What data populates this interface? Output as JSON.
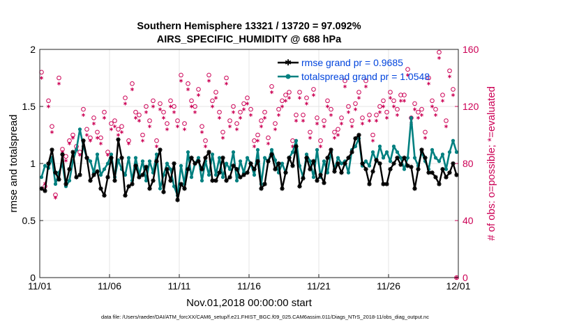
{
  "chart_data": {
    "type": "line",
    "title_line1": "Southern Hemisphere 13321 / 13720 = 97.092%",
    "title_line2": "AIRS_SPECIFIC_HUMIDITY @ 688 hPa",
    "xlabel": "Nov.01,2018 00:00:00 start",
    "ylabel_left": "rmse and totalspread",
    "ylabel_right": "# of obs: o=possible; *=evaluated",
    "footer": "data file: /Users/raeder/DAI/ATM_forcXX/CAM6_setup/f.e21.FHIST_BGC.f09_025.CAM6assim.011/Diags_NTrS_2018-11/obs_diag_output.nc",
    "xlim": [
      0,
      30
    ],
    "ylim_left": [
      0,
      2
    ],
    "ylim_right": [
      0,
      160
    ],
    "xticks": [
      0,
      5,
      10,
      15,
      20,
      25,
      30
    ],
    "xtick_labels": [
      "11/01",
      "11/06",
      "11/11",
      "11/16",
      "11/21",
      "11/26",
      "12/01"
    ],
    "yticks_left": [
      0,
      0.5,
      1,
      1.5,
      2
    ],
    "ytick_labels_left": [
      "0",
      "0.5",
      "1",
      "1.5",
      "2"
    ],
    "yticks_right": [
      0,
      40,
      80,
      120,
      160
    ],
    "ytick_labels_right": [
      "0",
      "40",
      "80",
      "120",
      "160"
    ],
    "grid": true,
    "legend_position": "top-right",
    "colors": {
      "rmse": "#000000",
      "spread": "#008080",
      "obs": "#cc0055",
      "legend_text": "#0044dd"
    },
    "x": [
      0.125,
      0.375,
      0.625,
      0.875,
      1.125,
      1.375,
      1.625,
      1.875,
      2.125,
      2.375,
      2.625,
      2.875,
      3.125,
      3.375,
      3.625,
      3.875,
      4.125,
      4.375,
      4.625,
      4.875,
      5.125,
      5.375,
      5.625,
      5.875,
      6.125,
      6.375,
      6.625,
      6.875,
      7.125,
      7.375,
      7.625,
      7.875,
      8.125,
      8.375,
      8.625,
      8.875,
      9.125,
      9.375,
      9.625,
      9.875,
      10.125,
      10.375,
      10.625,
      10.875,
      11.125,
      11.375,
      11.625,
      11.875,
      12.125,
      12.375,
      12.625,
      12.875,
      13.125,
      13.375,
      13.625,
      13.875,
      14.125,
      14.375,
      14.625,
      14.875,
      15.125,
      15.375,
      15.625,
      15.875,
      16.125,
      16.375,
      16.625,
      16.875,
      17.125,
      17.375,
      17.625,
      17.875,
      18.125,
      18.375,
      18.625,
      18.875,
      19.125,
      19.375,
      19.625,
      19.875,
      20.125,
      20.375,
      20.625,
      20.875,
      21.125,
      21.375,
      21.625,
      21.875,
      22.125,
      22.375,
      22.625,
      22.875,
      23.125,
      23.375,
      23.625,
      23.875,
      24.125,
      24.375,
      24.625,
      24.875,
      25.125,
      25.375,
      25.625,
      25.875,
      26.125,
      26.375,
      26.625,
      26.875,
      27.125,
      27.375,
      27.625,
      27.875,
      28.125,
      28.375,
      28.625,
      28.875,
      29.125,
      29.375,
      29.625,
      29.875
    ],
    "series": [
      {
        "name": "rmse",
        "legend": "rmse grand pr = 0.9685",
        "values": [
          0.78,
          0.76,
          1.0,
          1.12,
          0.92,
          0.86,
          1.08,
          0.82,
          0.95,
          1.1,
          0.88,
          0.9,
          1.2,
          1.05,
          0.85,
          0.9,
          0.93,
          0.78,
          0.72,
          0.88,
          1.05,
          0.85,
          1.21,
          1.05,
          0.72,
          0.8,
          0.82,
          0.98,
          0.88,
          0.9,
          0.97,
          0.78,
          0.85,
          1.02,
          1.12,
          0.75,
          0.95,
          0.85,
          1.0,
          0.68,
          0.82,
          0.78,
          0.95,
          1.05,
          1.0,
          1.02,
          0.95,
          1.05,
          1.1,
          0.85,
          0.85,
          0.92,
          1.05,
          0.85,
          0.88,
          0.98,
          0.95,
          0.88,
          0.9,
          0.92,
          1.0,
          0.95,
          1.02,
          0.78,
          0.82,
          1.02,
          1.08,
          0.95,
          1.0,
          0.78,
          0.92,
          1.05,
          0.98,
          1.15,
          0.8,
          0.87,
          1.05,
          0.95,
          1.02,
          0.85,
          0.9,
          0.83,
          1.05,
          1.12,
          0.93,
          1.0,
          0.92,
          1.0,
          1.05,
          1.1,
          1.22,
          1.25,
          1.0,
          0.95,
          0.82,
          0.93,
          1.03,
          1.0,
          0.82,
          0.82,
          0.95,
          1.0,
          1.05,
          0.99,
          1.05,
          0.98,
          0.97,
          0.78,
          0.95,
          1.12,
          1.05,
          0.92,
          0.92,
          0.88,
          0.82,
          0.95,
          0.88,
          0.92,
          1.0,
          0.9
        ]
      },
      {
        "name": "totalspread",
        "legend": "totalspread grand pr = 1.0548",
        "values": [
          0.88,
          0.98,
          0.96,
          1.05,
          0.82,
          0.92,
          1.0,
          0.8,
          0.85,
          1.02,
          1.12,
          1.3,
          1.15,
          1.05,
          1.02,
          0.92,
          1.08,
          0.9,
          0.95,
          1.0,
          1.08,
          0.88,
          1.03,
          0.95,
          0.9,
          1.05,
          0.85,
          1.05,
          0.9,
          1.02,
          0.85,
          1.02,
          0.92,
          1.08,
          0.78,
          0.9,
          1.0,
          0.95,
          0.8,
          0.72,
          0.98,
          0.82,
          1.1,
          0.88,
          1.0,
          1.05,
          0.85,
          1.02,
          0.9,
          1.08,
          0.9,
          1.05,
          0.88,
          1.0,
          0.95,
          1.1,
          0.85,
          1.02,
          0.92,
          1.05,
          1.0,
          0.9,
          1.12,
          0.82,
          1.05,
          1.02,
          1.12,
          1.03,
          0.92,
          1.0,
          0.92,
          1.05,
          1.1,
          1.2,
          0.98,
          0.88,
          1.08,
          1.02,
          0.88,
          1.12,
          0.88,
          1.02,
          0.92,
          1.1,
          0.95,
          1.05,
          1.0,
          1.02,
          0.92,
          1.12,
          1.15,
          1.22,
          0.98,
          1.02,
          0.98,
          1.1,
          1.02,
          1.15,
          1.05,
          1.1,
          1.02,
          1.15,
          1.1,
          1.05,
          0.95,
          1.05,
          1.4,
          1.05,
          0.98,
          1.1,
          1.02,
          0.95,
          1.12,
          1.05,
          1.02,
          1.08,
          0.95,
          1.1,
          1.2,
          1.1
        ]
      }
    ],
    "obs_possible": {
      "name": "# of obs possible",
      "marker": "o",
      "values": [
        144,
        64,
        124,
        106,
        58,
        140,
        90,
        85,
        96,
        100,
        92,
        88,
        118,
        104,
        98,
        112,
        102,
        98,
        116,
        88,
        108,
        110,
        104,
        106,
        126,
        96,
        136,
        116,
        114,
        100,
        120,
        110,
        124,
        96,
        122,
        116,
        108,
        124,
        120,
        110,
        142,
        108,
        136,
        124,
        120,
        132,
        106,
        96,
        142,
        124,
        130,
        116,
        102,
        140,
        110,
        120,
        108,
        116,
        122,
        126,
        118,
        96,
        100,
        110,
        116,
        98,
        134,
        108,
        118,
        124,
        128,
        130,
        96,
        114,
        130,
        114,
        126,
        102,
        132,
        112,
        96,
        110,
        124,
        118,
        102,
        104,
        112,
        138,
        120,
        110,
        122,
        130,
        112,
        138,
        114,
        100,
        114,
        120,
        124,
        116,
        130,
        124,
        118,
        128,
        128,
        146,
        112,
        122,
        116,
        118,
        102,
        140,
        124,
        118,
        158,
        128,
        110,
        145,
        132,
        0
      ]
    },
    "obs_evaluated": {
      "name": "# of obs evaluated",
      "marker": "*",
      "values": [
        140,
        66,
        120,
        102,
        56,
        136,
        88,
        82,
        94,
        98,
        90,
        86,
        114,
        100,
        96,
        108,
        98,
        94,
        112,
        86,
        104,
        106,
        100,
        102,
        122,
        94,
        132,
        112,
        110,
        96,
        116,
        106,
        120,
        92,
        118,
        112,
        104,
        120,
        116,
        106,
        138,
        104,
        132,
        120,
        116,
        128,
        102,
        92,
        138,
        120,
        126,
        112,
        98,
        136,
        106,
        116,
        104,
        112,
        118,
        122,
        114,
        92,
        96,
        106,
        112,
        94,
        130,
        104,
        114,
        120,
        124,
        126,
        92,
        110,
        126,
        110,
        122,
        98,
        128,
        108,
        92,
        106,
        120,
        114,
        98,
        100,
        108,
        134,
        116,
        106,
        118,
        126,
        108,
        134,
        110,
        96,
        110,
        116,
        120,
        112,
        126,
        120,
        114,
        124,
        124,
        142,
        108,
        118,
        112,
        114,
        98,
        136,
        120,
        114,
        154,
        124,
        106,
        141,
        128,
        0
      ]
    }
  }
}
